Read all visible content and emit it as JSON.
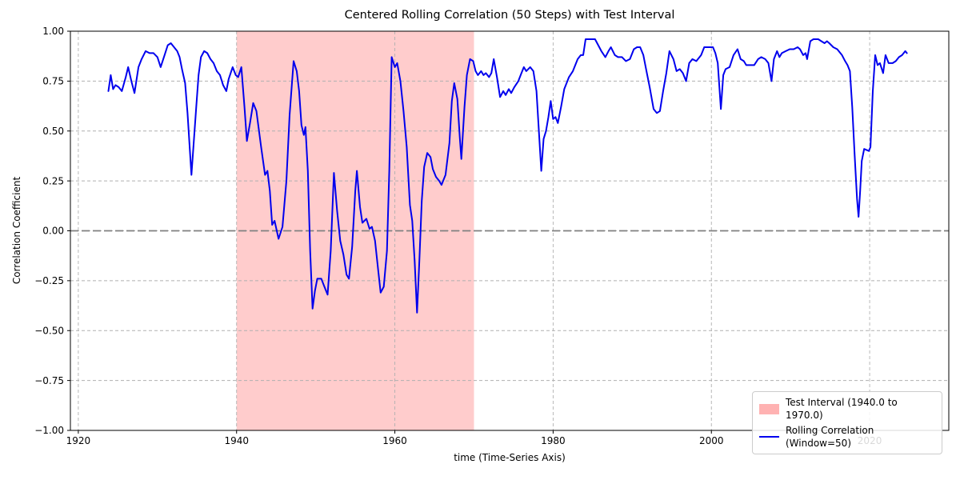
{
  "chart_data": {
    "type": "line",
    "title": "Centered Rolling Correlation (50 Steps) with Test Interval",
    "xlabel": "time (Time-Series Axis)",
    "ylabel": "Correlation Coefficient",
    "xlim": [
      1919,
      2030
    ],
    "ylim": [
      -1.0,
      1.0
    ],
    "grid": true,
    "grid_color": "#b0b0b0",
    "frame_color": "#000000",
    "x_ticks": [
      1920,
      1940,
      1960,
      1980,
      2000,
      2020
    ],
    "x_tick_labels": [
      "1920",
      "1940",
      "1960",
      "1980",
      "2000",
      "2020"
    ],
    "y_ticks": [
      1.0,
      0.75,
      0.5,
      0.25,
      0.0,
      -0.25,
      -0.5,
      -0.75,
      -1.0
    ],
    "y_tick_labels": [
      "1.00",
      "0.75",
      "0.50",
      "0.25",
      "0.00",
      "−0.25",
      "−0.50",
      "−0.75",
      "−1.00"
    ],
    "zero_line": {
      "y": 0.0,
      "color": "#808080",
      "width": 1.8,
      "dash": "10 4"
    },
    "test_interval": {
      "start": 1940.0,
      "end": 1970.0,
      "fill": "rgba(255,0,0,0.2)"
    },
    "legend": {
      "position": "lower right",
      "items": [
        {
          "label": "Test Interval (1940.0 to 1970.0)",
          "swatch": "patch",
          "color": "rgba(255,0,0,0.3)"
        },
        {
          "label": "Rolling Correlation (Window=50)",
          "swatch": "line",
          "color": "#0000ee"
        }
      ]
    },
    "series": [
      {
        "name": "Rolling Correlation (Window=50)",
        "color": "#0000ee",
        "width": 2,
        "points": [
          [
            1923.8,
            0.7
          ],
          [
            1924.1,
            0.78
          ],
          [
            1924.4,
            0.71
          ],
          [
            1924.7,
            0.73
          ],
          [
            1925.1,
            0.72
          ],
          [
            1925.5,
            0.7
          ],
          [
            1926.0,
            0.77
          ],
          [
            1926.3,
            0.82
          ],
          [
            1926.7,
            0.75
          ],
          [
            1927.1,
            0.69
          ],
          [
            1927.6,
            0.82
          ],
          [
            1928.0,
            0.86
          ],
          [
            1928.5,
            0.9
          ],
          [
            1929.0,
            0.89
          ],
          [
            1929.5,
            0.89
          ],
          [
            1930.0,
            0.87
          ],
          [
            1930.4,
            0.82
          ],
          [
            1930.9,
            0.88
          ],
          [
            1931.3,
            0.93
          ],
          [
            1931.7,
            0.94
          ],
          [
            1932.1,
            0.92
          ],
          [
            1932.5,
            0.9
          ],
          [
            1932.8,
            0.87
          ],
          [
            1933.1,
            0.81
          ],
          [
            1933.5,
            0.74
          ],
          [
            1933.8,
            0.59
          ],
          [
            1934.1,
            0.4
          ],
          [
            1934.3,
            0.28
          ],
          [
            1934.6,
            0.45
          ],
          [
            1934.9,
            0.62
          ],
          [
            1935.2,
            0.78
          ],
          [
            1935.5,
            0.87
          ],
          [
            1935.9,
            0.9
          ],
          [
            1936.3,
            0.89
          ],
          [
            1936.7,
            0.86
          ],
          [
            1937.1,
            0.84
          ],
          [
            1937.5,
            0.8
          ],
          [
            1937.9,
            0.78
          ],
          [
            1938.3,
            0.73
          ],
          [
            1938.7,
            0.7
          ],
          [
            1939.0,
            0.76
          ],
          [
            1939.5,
            0.82
          ],
          [
            1939.9,
            0.78
          ],
          [
            1940.2,
            0.77
          ],
          [
            1940.6,
            0.82
          ],
          [
            1941.0,
            0.62
          ],
          [
            1941.3,
            0.45
          ],
          [
            1941.7,
            0.54
          ],
          [
            1942.1,
            0.64
          ],
          [
            1942.5,
            0.6
          ],
          [
            1943.1,
            0.42
          ],
          [
            1943.6,
            0.28
          ],
          [
            1943.9,
            0.3
          ],
          [
            1944.2,
            0.2
          ],
          [
            1944.5,
            0.03
          ],
          [
            1944.8,
            0.05
          ],
          [
            1945.3,
            -0.04
          ],
          [
            1945.8,
            0.02
          ],
          [
            1946.3,
            0.25
          ],
          [
            1946.7,
            0.58
          ],
          [
            1947.2,
            0.85
          ],
          [
            1947.6,
            0.8
          ],
          [
            1947.9,
            0.7
          ],
          [
            1948.2,
            0.53
          ],
          [
            1948.5,
            0.48
          ],
          [
            1948.7,
            0.52
          ],
          [
            1949.0,
            0.3
          ],
          [
            1949.3,
            -0.1
          ],
          [
            1949.6,
            -0.39
          ],
          [
            1949.9,
            -0.3
          ],
          [
            1950.2,
            -0.24
          ],
          [
            1950.7,
            -0.24
          ],
          [
            1951.1,
            -0.28
          ],
          [
            1951.5,
            -0.32
          ],
          [
            1951.9,
            -0.1
          ],
          [
            1952.3,
            0.29
          ],
          [
            1952.7,
            0.1
          ],
          [
            1953.1,
            -0.05
          ],
          [
            1953.5,
            -0.12
          ],
          [
            1953.9,
            -0.22
          ],
          [
            1954.2,
            -0.24
          ],
          [
            1954.6,
            -0.08
          ],
          [
            1955.0,
            0.2
          ],
          [
            1955.2,
            0.3
          ],
          [
            1955.6,
            0.12
          ],
          [
            1955.9,
            0.04
          ],
          [
            1956.4,
            0.06
          ],
          [
            1956.8,
            0.01
          ],
          [
            1957.1,
            0.02
          ],
          [
            1957.5,
            -0.05
          ],
          [
            1957.9,
            -0.2
          ],
          [
            1958.2,
            -0.31
          ],
          [
            1958.6,
            -0.28
          ],
          [
            1959.0,
            -0.1
          ],
          [
            1959.3,
            0.3
          ],
          [
            1959.6,
            0.87
          ],
          [
            1960.0,
            0.82
          ],
          [
            1960.3,
            0.84
          ],
          [
            1960.7,
            0.75
          ],
          [
            1961.1,
            0.6
          ],
          [
            1961.5,
            0.42
          ],
          [
            1961.9,
            0.13
          ],
          [
            1962.2,
            0.05
          ],
          [
            1962.5,
            -0.15
          ],
          [
            1962.8,
            -0.41
          ],
          [
            1963.1,
            -0.15
          ],
          [
            1963.4,
            0.15
          ],
          [
            1963.7,
            0.32
          ],
          [
            1964.1,
            0.39
          ],
          [
            1964.5,
            0.37
          ],
          [
            1964.8,
            0.31
          ],
          [
            1965.2,
            0.27
          ],
          [
            1965.6,
            0.25
          ],
          [
            1965.9,
            0.23
          ],
          [
            1966.4,
            0.28
          ],
          [
            1966.9,
            0.44
          ],
          [
            1967.2,
            0.65
          ],
          [
            1967.5,
            0.74
          ],
          [
            1967.9,
            0.66
          ],
          [
            1968.2,
            0.47
          ],
          [
            1968.4,
            0.36
          ],
          [
            1968.8,
            0.62
          ],
          [
            1969.1,
            0.78
          ],
          [
            1969.5,
            0.86
          ],
          [
            1969.9,
            0.85
          ],
          [
            1970.2,
            0.8
          ],
          [
            1970.5,
            0.78
          ],
          [
            1970.9,
            0.8
          ],
          [
            1971.2,
            0.78
          ],
          [
            1971.5,
            0.79
          ],
          [
            1971.9,
            0.77
          ],
          [
            1972.2,
            0.79
          ],
          [
            1972.5,
            0.86
          ],
          [
            1972.9,
            0.77
          ],
          [
            1973.3,
            0.67
          ],
          [
            1973.7,
            0.7
          ],
          [
            1974.0,
            0.68
          ],
          [
            1974.4,
            0.71
          ],
          [
            1974.7,
            0.69
          ],
          [
            1975.1,
            0.72
          ],
          [
            1975.6,
            0.75
          ],
          [
            1976.0,
            0.79
          ],
          [
            1976.3,
            0.82
          ],
          [
            1976.6,
            0.8
          ],
          [
            1977.1,
            0.82
          ],
          [
            1977.5,
            0.8
          ],
          [
            1977.9,
            0.7
          ],
          [
            1978.2,
            0.5
          ],
          [
            1978.5,
            0.3
          ],
          [
            1978.8,
            0.46
          ],
          [
            1979.1,
            0.5
          ],
          [
            1979.4,
            0.57
          ],
          [
            1979.7,
            0.65
          ],
          [
            1980.0,
            0.56
          ],
          [
            1980.3,
            0.57
          ],
          [
            1980.6,
            0.54
          ],
          [
            1981.0,
            0.62
          ],
          [
            1981.4,
            0.71
          ],
          [
            1982.0,
            0.77
          ],
          [
            1982.5,
            0.8
          ],
          [
            1983.1,
            0.86
          ],
          [
            1983.5,
            0.88
          ],
          [
            1983.8,
            0.88
          ],
          [
            1984.1,
            0.96
          ],
          [
            1984.7,
            0.96
          ],
          [
            1985.3,
            0.96
          ],
          [
            1985.7,
            0.93
          ],
          [
            1986.1,
            0.9
          ],
          [
            1986.6,
            0.87
          ],
          [
            1987.0,
            0.9
          ],
          [
            1987.3,
            0.92
          ],
          [
            1987.8,
            0.88
          ],
          [
            1988.2,
            0.87
          ],
          [
            1988.7,
            0.87
          ],
          [
            1989.2,
            0.85
          ],
          [
            1989.7,
            0.86
          ],
          [
            1990.2,
            0.91
          ],
          [
            1990.6,
            0.92
          ],
          [
            1991.0,
            0.92
          ],
          [
            1991.4,
            0.88
          ],
          [
            1991.8,
            0.8
          ],
          [
            1992.2,
            0.72
          ],
          [
            1992.7,
            0.61
          ],
          [
            1993.1,
            0.59
          ],
          [
            1993.5,
            0.6
          ],
          [
            1993.9,
            0.7
          ],
          [
            1994.3,
            0.79
          ],
          [
            1994.7,
            0.9
          ],
          [
            1995.2,
            0.86
          ],
          [
            1995.6,
            0.8
          ],
          [
            1996.0,
            0.81
          ],
          [
            1996.4,
            0.79
          ],
          [
            1996.8,
            0.75
          ],
          [
            1997.2,
            0.84
          ],
          [
            1997.6,
            0.86
          ],
          [
            1998.1,
            0.85
          ],
          [
            1998.7,
            0.88
          ],
          [
            1999.1,
            0.92
          ],
          [
            1999.6,
            0.92
          ],
          [
            2000.2,
            0.92
          ],
          [
            2000.5,
            0.89
          ],
          [
            2000.8,
            0.84
          ],
          [
            2001.2,
            0.61
          ],
          [
            2001.5,
            0.78
          ],
          [
            2001.8,
            0.81
          ],
          [
            2002.3,
            0.82
          ],
          [
            2002.8,
            0.88
          ],
          [
            2003.3,
            0.91
          ],
          [
            2003.7,
            0.86
          ],
          [
            2004.1,
            0.85
          ],
          [
            2004.4,
            0.83
          ],
          [
            2004.9,
            0.83
          ],
          [
            2005.4,
            0.83
          ],
          [
            2005.9,
            0.86
          ],
          [
            2006.3,
            0.87
          ],
          [
            2006.8,
            0.86
          ],
          [
            2007.2,
            0.84
          ],
          [
            2007.6,
            0.75
          ],
          [
            2007.9,
            0.86
          ],
          [
            2008.3,
            0.9
          ],
          [
            2008.6,
            0.87
          ],
          [
            2008.9,
            0.89
          ],
          [
            2009.4,
            0.9
          ],
          [
            2009.9,
            0.91
          ],
          [
            2010.4,
            0.91
          ],
          [
            2010.9,
            0.92
          ],
          [
            2011.2,
            0.91
          ],
          [
            2011.6,
            0.88
          ],
          [
            2011.9,
            0.89
          ],
          [
            2012.1,
            0.86
          ],
          [
            2012.5,
            0.95
          ],
          [
            2012.9,
            0.96
          ],
          [
            2013.5,
            0.96
          ],
          [
            2013.9,
            0.95
          ],
          [
            2014.3,
            0.94
          ],
          [
            2014.6,
            0.95
          ],
          [
            2014.9,
            0.94
          ],
          [
            2015.4,
            0.92
          ],
          [
            2015.9,
            0.91
          ],
          [
            2016.5,
            0.88
          ],
          [
            2016.9,
            0.85
          ],
          [
            2017.2,
            0.83
          ],
          [
            2017.5,
            0.8
          ],
          [
            2017.8,
            0.62
          ],
          [
            2018.1,
            0.38
          ],
          [
            2018.4,
            0.16
          ],
          [
            2018.6,
            0.07
          ],
          [
            2018.8,
            0.2
          ],
          [
            2019.0,
            0.35
          ],
          [
            2019.3,
            0.41
          ],
          [
            2019.9,
            0.4
          ],
          [
            2020.1,
            0.42
          ],
          [
            2020.4,
            0.7
          ],
          [
            2020.7,
            0.88
          ],
          [
            2021.0,
            0.83
          ],
          [
            2021.3,
            0.84
          ],
          [
            2021.7,
            0.79
          ],
          [
            2022.0,
            0.88
          ],
          [
            2022.4,
            0.84
          ],
          [
            2022.9,
            0.84
          ],
          [
            2023.3,
            0.85
          ],
          [
            2023.7,
            0.87
          ],
          [
            2024.1,
            0.88
          ],
          [
            2024.5,
            0.9
          ],
          [
            2024.7,
            0.89
          ]
        ]
      }
    ]
  }
}
